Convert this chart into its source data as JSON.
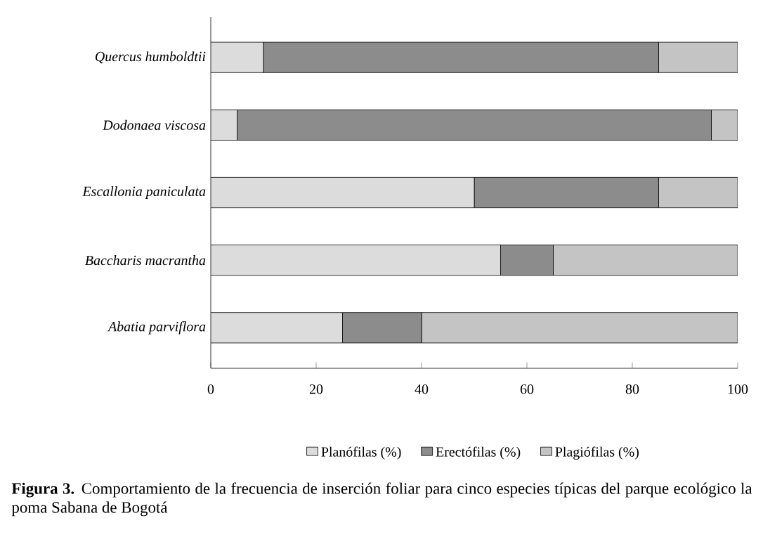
{
  "chart_data": {
    "type": "bar",
    "orientation": "horizontal",
    "stacked": true,
    "categories": [
      "Quercus humboldtii",
      "Dodonaea viscosa",
      "Escallonia paniculata",
      "Baccharis macrantha",
      "Abatia parviflora"
    ],
    "series": [
      {
        "name": "Planófilas (%)",
        "color": "#dcdcdc",
        "values": [
          10,
          5,
          50,
          55,
          25
        ]
      },
      {
        "name": "Erectófilas (%)",
        "color": "#8c8c8c",
        "values": [
          75,
          90,
          35,
          10,
          15
        ]
      },
      {
        "name": "Plagiófilas (%)",
        "color": "#c4c4c4",
        "values": [
          15,
          5,
          15,
          35,
          60
        ]
      }
    ],
    "xlim": [
      0,
      100
    ],
    "xticks": [
      0,
      20,
      40,
      60,
      80,
      100
    ],
    "legend": "bottom",
    "annotations": [
      "**Figura 3.** Comportamiento de la frecuencia de inserción foliar para cinco especies típicas del parque ecológico la poma Sabana de Bogotá"
    ]
  }
}
